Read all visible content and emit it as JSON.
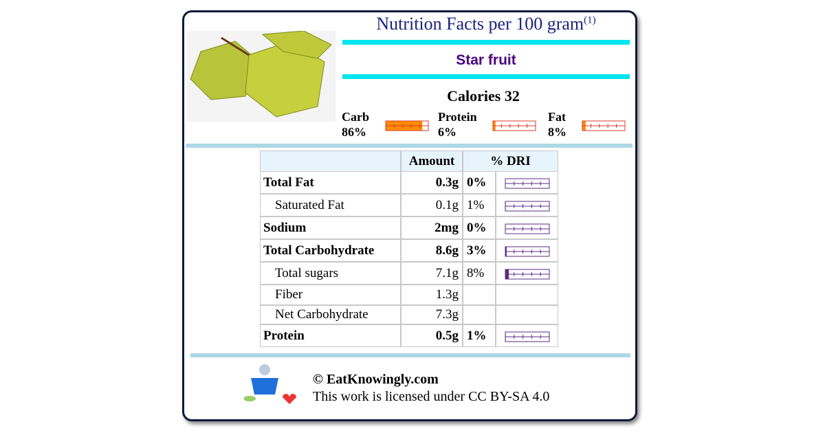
{
  "header": {
    "title": "Nutrition Facts per 100 gram",
    "note": "(1)",
    "food": "Star fruit",
    "calories": "Calories 32"
  },
  "macros": [
    {
      "name": "Carb",
      "percent": {
        "value": 86,
        "label": "86%"
      },
      "color": "#ff8c00"
    },
    {
      "name": "Protein",
      "percent": {
        "value": 6,
        "label": "6%"
      },
      "color": "#ff8c00"
    },
    {
      "name": "Fat",
      "percent": {
        "value": 8,
        "label": "8%"
      },
      "color": "#ff8c00"
    }
  ],
  "table": {
    "columns": [
      "Amount",
      "% DRI"
    ],
    "rows": [
      {
        "name": "Total Fat",
        "amount": "0.3g",
        "dri": {
          "value": 0,
          "label": "0%"
        },
        "bold": true,
        "indent": false
      },
      {
        "name": "Saturated Fat",
        "amount": "0.1g",
        "dri": {
          "value": 1,
          "label": "1%"
        },
        "bold": false,
        "indent": true
      },
      {
        "name": "Sodium",
        "amount": "2mg",
        "dri": {
          "value": 0,
          "label": "0%"
        },
        "bold": true,
        "indent": false
      },
      {
        "name": "Total Carbohydrate",
        "amount": "8.6g",
        "dri": {
          "value": 3,
          "label": "3%"
        },
        "bold": true,
        "indent": false
      },
      {
        "name": "Total sugars",
        "amount": "7.1g",
        "dri": {
          "value": 8,
          "label": "8%"
        },
        "bold": false,
        "indent": true
      },
      {
        "name": "Fiber",
        "amount": "1.3g",
        "bold": false,
        "indent": true
      },
      {
        "name": "Net Carbohydrate",
        "amount": "7.3g",
        "bold": false,
        "indent": true
      },
      {
        "name": "Protein",
        "amount": "0.5g",
        "dri": {
          "value": 1,
          "label": "1%"
        },
        "bold": true,
        "indent": false
      }
    ]
  },
  "footer": {
    "copyright": "© EatKnowingly.com",
    "license": "This work is licensed under CC BY-SA 4.0"
  }
}
